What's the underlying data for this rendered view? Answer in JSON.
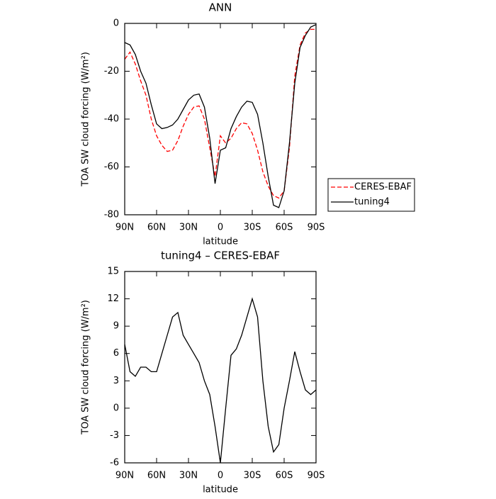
{
  "chart_data": [
    {
      "type": "line",
      "title": "ANN",
      "xlabel": "latitude",
      "ylabel": "TOA SW cloud forcing (W/m²)",
      "x": [
        90,
        85,
        80,
        75,
        70,
        65,
        60,
        55,
        50,
        45,
        40,
        35,
        30,
        25,
        20,
        15,
        10,
        5,
        0,
        -5,
        -10,
        -15,
        -20,
        -25,
        -30,
        -35,
        -40,
        -45,
        -50,
        -55,
        -60,
        -65,
        -70,
        -75,
        -80,
        -85,
        -90
      ],
      "series": [
        {
          "name": "CERES-EBAF",
          "color": "#ff0000",
          "line_style": "dashed",
          "values": [
            -15,
            -12,
            -17,
            -24,
            -30,
            -40,
            -47,
            -51,
            -53.5,
            -53,
            -49,
            -43,
            -38,
            -35,
            -34.5,
            -40,
            -52,
            -64,
            -47,
            -50,
            -48,
            -44,
            -41.5,
            -42,
            -46,
            -53,
            -62,
            -68,
            -72,
            -73,
            -70,
            -52,
            -22,
            -9,
            -4,
            -2.5,
            -2.5
          ]
        },
        {
          "name": "tuning4",
          "color": "#000000",
          "line_style": "solid",
          "values": [
            -8,
            -9,
            -13,
            -20,
            -25,
            -34,
            -42,
            -44,
            -43.5,
            -42.5,
            -40,
            -36,
            -32,
            -30,
            -29.5,
            -35,
            -48,
            -67,
            -53,
            -52,
            -44,
            -39,
            -35,
            -32.5,
            -33,
            -38,
            -50,
            -64,
            -76,
            -77,
            -70,
            -50,
            -25,
            -10,
            -5,
            -1.5,
            -0.5
          ]
        }
      ],
      "xlim": [
        90,
        -90
      ],
      "xticks": [
        {
          "value": 90,
          "label": "90N"
        },
        {
          "value": 60,
          "label": "60N"
        },
        {
          "value": 30,
          "label": "30N"
        },
        0,
        {
          "value": -30,
          "label": "30S"
        },
        {
          "value": -60,
          "label": "60S"
        },
        {
          "value": -90,
          "label": "90S"
        }
      ],
      "ylim": [
        -80,
        0
      ],
      "yticks": [
        -80,
        -60,
        -40,
        -20,
        0
      ],
      "legend": "outside-right"
    },
    {
      "type": "line",
      "title": "tuning4 – CERES-EBAF",
      "xlabel": "latitude",
      "ylabel": "TOA SW cloud forcing (W/m²)",
      "x": [
        90,
        85,
        80,
        75,
        70,
        65,
        60,
        55,
        50,
        45,
        40,
        35,
        30,
        25,
        20,
        15,
        10,
        5,
        0,
        -5,
        -10,
        -15,
        -20,
        -25,
        -30,
        -35,
        -40,
        -45,
        -50,
        -55,
        -60,
        -65,
        -70,
        -75,
        -80,
        -85,
        -90
      ],
      "values": [
        7,
        4,
        3.5,
        4.5,
        4.5,
        4,
        4,
        6,
        8,
        10,
        10.5,
        8,
        7,
        6,
        5,
        3,
        1.5,
        -2,
        -6,
        0,
        5.8,
        6.5,
        8,
        10,
        12,
        10,
        3,
        -2,
        -4.8,
        -4,
        0,
        3,
        6.2,
        4,
        2,
        1.5,
        2
      ],
      "color": "#000000",
      "xlim": [
        90,
        -90
      ],
      "xticks": [
        {
          "value": 90,
          "label": "90N"
        },
        {
          "value": 60,
          "label": "60N"
        },
        {
          "value": 30,
          "label": "30N"
        },
        0,
        {
          "value": -30,
          "label": "30S"
        },
        {
          "value": -60,
          "label": "60S"
        },
        {
          "value": -90,
          "label": "90S"
        }
      ],
      "ylim": [
        -6,
        15
      ],
      "yticks": [
        -6,
        -3,
        0,
        3,
        6,
        9,
        12,
        15
      ]
    }
  ]
}
